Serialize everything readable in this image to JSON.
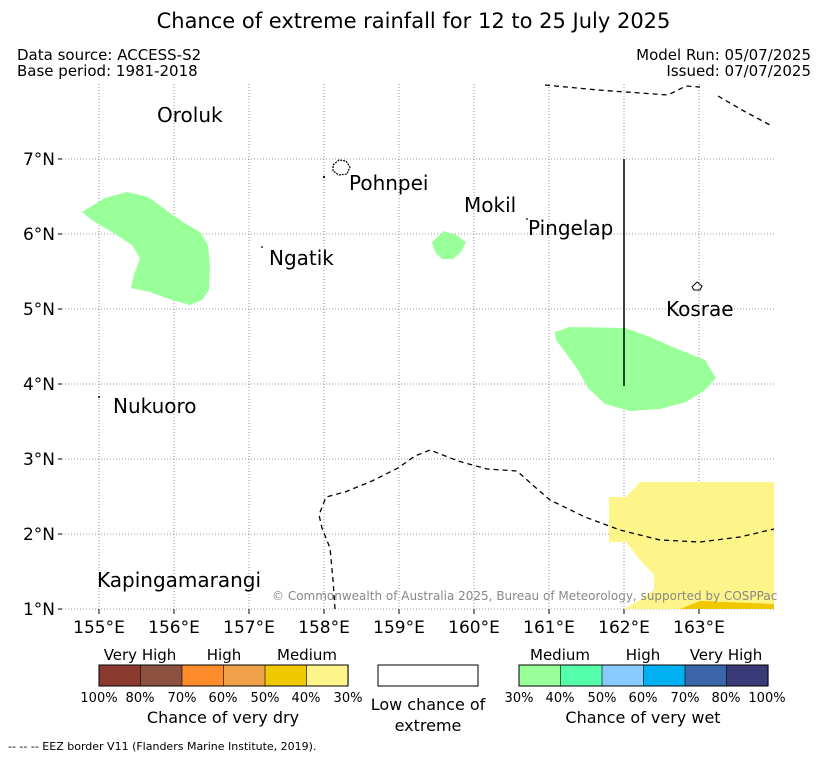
{
  "title": "Chance of extreme rainfall for 12 to 25 July 2025",
  "data_source": "Data source: ACCESS-S2",
  "base_period": "Base period: 1981-2018",
  "model_run": "Model Run: 05/07/2025",
  "issued": "Issued: 07/07/2025",
  "copyright": "© Commonwealth of Australia 2025, Bureau of Meteorology, supported by COSPPac",
  "places": [
    "Oroluk",
    "Pohnpei",
    "Mokil",
    "Pingelap",
    "Ngatik",
    "Kosrae",
    "Nukuoro",
    "Kapingamarangi"
  ],
  "lat_labels": [
    "7°N",
    "6°N",
    "5°N",
    "4°N",
    "3°N",
    "2°N",
    "1°N"
  ],
  "lon_labels": [
    "155°E",
    "156°E",
    "157°E",
    "158°E",
    "159°E",
    "160°E",
    "161°E",
    "162°E",
    "163°E"
  ],
  "legend": {
    "dry": {
      "groups": [
        "Very High",
        "High",
        "Medium"
      ],
      "colors": [
        "#8b3a2f",
        "#8c5040",
        "#ff8c2a",
        "#f0a24a",
        "#f0c800",
        "#fdf58a"
      ],
      "pcts": [
        "100%",
        "80%",
        "70%",
        "60%",
        "50%",
        "40%",
        "30%"
      ],
      "caption": "Chance of very dry"
    },
    "low": {
      "caption": "Low chance of extreme"
    },
    "wet": {
      "groups": [
        "Medium",
        "High",
        "Very High"
      ],
      "colors": [
        "#99ff99",
        "#55ffaa",
        "#88ccff",
        "#00b0f0",
        "#3a65a8",
        "#3a3a78"
      ],
      "pcts": [
        "30%",
        "40%",
        "50%",
        "60%",
        "70%",
        "80%",
        "100%"
      ],
      "caption": "Chance of very wet"
    }
  },
  "eez_note": "-- -- -- EEZ border V11 (Flanders Marine Institute, 2019)."
}
